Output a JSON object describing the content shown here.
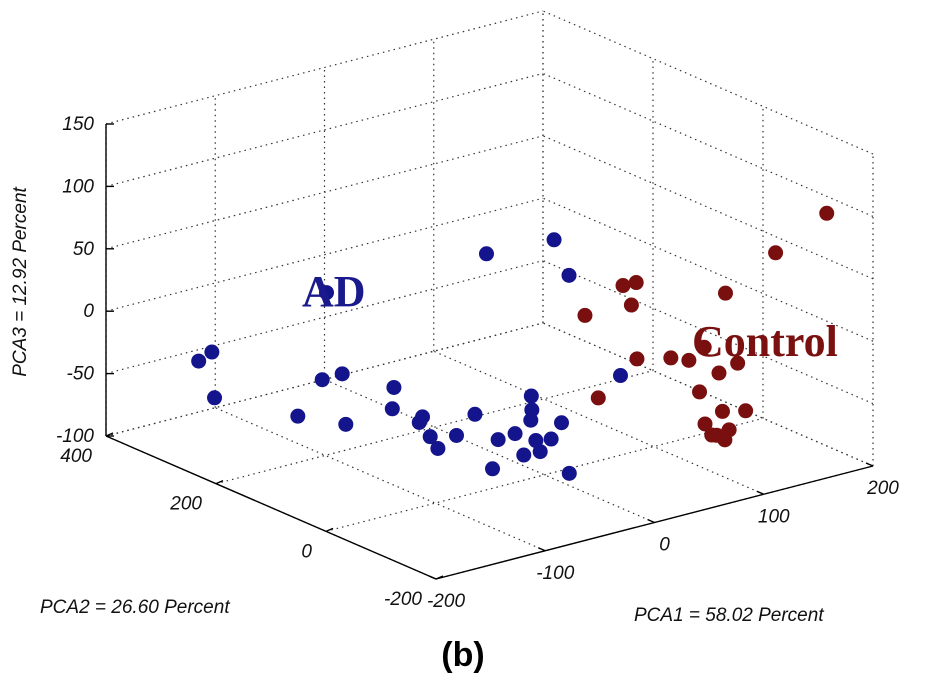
{
  "chart_data": {
    "type": "scatter",
    "projection": "3d",
    "xlabel": "PCA1 = 58.02 Percent",
    "ylabel": "PCA2 = 26.60 Percent",
    "zlabel": "PCA3 = 12.92 Percent",
    "xlim": [
      -200,
      200
    ],
    "ylim": [
      -200,
      400
    ],
    "zlim": [
      -100,
      150
    ],
    "x_ticks": [
      "-200",
      "-100",
      "0",
      "100",
      "200"
    ],
    "y_ticks": [
      "-200",
      "0",
      "200",
      "400"
    ],
    "z_ticks": [
      "-100",
      "-50",
      "0",
      "50",
      "100",
      "150"
    ],
    "grid": true,
    "annotations": [
      {
        "text": "AD",
        "color": "#1a1a8c"
      },
      {
        "text": "Control",
        "color": "#7a1010"
      }
    ],
    "series": [
      {
        "name": "AD",
        "color": "#14148c",
        "points": [
          [
            -150,
            302,
            -62
          ],
          [
            -165,
            301,
            -29
          ],
          [
            -162,
            283,
            -19
          ],
          [
            -110,
            230,
            -72
          ],
          [
            -120,
            158,
            43
          ],
          [
            -137,
            132,
            -18
          ],
          [
            -88,
            193,
            -36
          ],
          [
            -88,
            99,
            -29
          ],
          [
            -94,
            90,
            -43
          ],
          [
            -128,
            107,
            -51
          ],
          [
            -84,
            27,
            -65
          ],
          [
            -89,
            45,
            -42
          ],
          [
            -86,
            37,
            -57
          ],
          [
            -95,
            39,
            -44
          ],
          [
            -71,
            19,
            -56
          ],
          [
            -38,
            30,
            80
          ],
          [
            -39,
            49,
            -52
          ],
          [
            -19,
            -22,
            -64
          ],
          [
            -4,
            16,
            -39
          ],
          [
            -5,
            15,
            -58
          ],
          [
            -13,
            -18,
            -75
          ],
          [
            -22,
            -6,
            -78
          ],
          [
            -51,
            -17,
            -57
          ],
          [
            -35,
            -16,
            -56
          ],
          [
            -2,
            -49,
            -89
          ],
          [
            -35,
            25,
            -92
          ],
          [
            -5,
            -22,
            -66
          ],
          [
            1,
            25,
            -53
          ],
          [
            6,
            -19,
            -56
          ],
          [
            44,
            70,
            65
          ],
          [
            32,
            19,
            49
          ],
          [
            61,
            -17,
            -31
          ]
        ]
      },
      {
        "name": "Control",
        "color": "#7a0f0f",
        "points": [
          [
            31,
            -12,
            23
          ],
          [
            17,
            -64,
            -30
          ],
          [
            66,
            -37,
            -15
          ],
          [
            94,
            44,
            22
          ],
          [
            94,
            20,
            29
          ],
          [
            73,
            -13,
            22
          ],
          [
            95,
            -41,
            -20
          ],
          [
            120,
            -52,
            -15
          ],
          [
            112,
            -40,
            -26
          ],
          [
            129,
            -61,
            -36
          ],
          [
            141,
            -49,
            23
          ],
          [
            133,
            -87,
            -24
          ],
          [
            83,
            -117,
            -30
          ],
          [
            105,
            -115,
            -51
          ],
          [
            85,
            -123,
            -55
          ],
          [
            96,
            -145,
            -58
          ],
          [
            80,
            -154,
            -57
          ],
          [
            77,
            -175,
            -56
          ],
          [
            96,
            -175,
            -37
          ],
          [
            66,
            -173,
            -50
          ],
          [
            134,
            -154,
            77
          ],
          [
            209,
            -98,
            81
          ]
        ]
      }
    ],
    "panel_label": "(b)"
  }
}
